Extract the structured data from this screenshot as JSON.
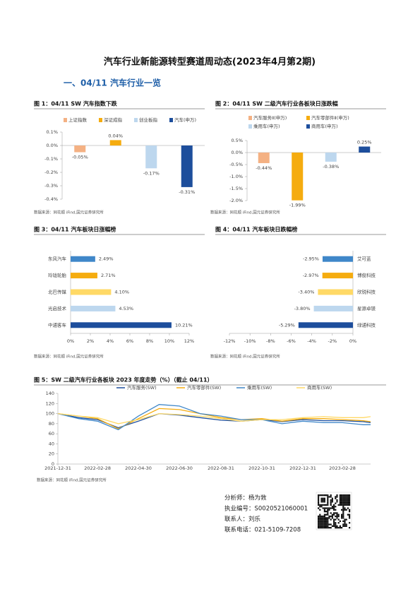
{
  "header": {
    "title": "汽车行业新能源转型赛道周动态(2023年4月第2期)",
    "section": "一、04/11 汽车行业一览"
  },
  "chart_data": [
    {
      "type": "bar",
      "title": "图 1：04/11 SW 汽车指数下跌",
      "source": "数据来源：同花顺 iFind,国元证券研究所",
      "series": [
        {
          "name": "上证指数",
          "color": "#f4b183",
          "values": [
            -0.05
          ],
          "value_labels": [
            "-0.05%"
          ]
        },
        {
          "name": "深证成指",
          "color": "#f5ac0f",
          "values": [
            0.04
          ],
          "value_labels": [
            "0.04%"
          ]
        },
        {
          "name": "创业板指",
          "color": "#bdd7ee",
          "values": [
            -0.17
          ],
          "value_labels": [
            "-0.17%"
          ]
        },
        {
          "name": "汽车(申万)",
          "color": "#1d4e9c",
          "values": [
            -0.31
          ],
          "value_labels": [
            "-0.31%"
          ]
        }
      ],
      "ylim": [
        -0.4,
        0.1
      ],
      "yticks": [
        {
          "value": 0.1,
          "label": "0.1%"
        },
        {
          "value": 0,
          "label": "0.0%"
        },
        {
          "value": -0.1,
          "label": "-0.1%"
        },
        {
          "value": -0.2,
          "label": "-0.2%"
        },
        {
          "value": -0.3,
          "label": "-0.3%"
        },
        {
          "value": -0.4,
          "label": "-0.4%"
        }
      ],
      "grid": false
    },
    {
      "type": "bar",
      "title": "图 2：04/11 SW 二级汽车行业各板块日涨跌幅",
      "source": "数据来源：同花顺 iFind,国元证券研究所",
      "series": [
        {
          "name": "汽车服务Ⅱ(申万)",
          "color": "#f4b183",
          "values": [
            -0.44
          ],
          "value_labels": [
            "-0.44%"
          ]
        },
        {
          "name": "汽车零部件Ⅱ(申万)",
          "color": "#f5ac0f",
          "values": [
            -1.99
          ],
          "value_labels": [
            "-1.99%"
          ]
        },
        {
          "name": "乘用车(申万)",
          "color": "#bdd7ee",
          "values": [
            -0.38
          ],
          "value_labels": [
            "-0.38%"
          ]
        },
        {
          "name": "商用车(申万)",
          "color": "#1d4e9c",
          "values": [
            0.25
          ],
          "value_labels": [
            "0.25%"
          ]
        }
      ],
      "ylim": [
        -2.0,
        0.5
      ],
      "yticks": [
        {
          "value": 0.5,
          "label": "0.5%"
        },
        {
          "value": 0,
          "label": "0.0%"
        },
        {
          "value": -0.5,
          "label": "-0.5%"
        },
        {
          "value": -1.0,
          "label": "-1.0%"
        },
        {
          "value": -1.5,
          "label": "-1.5%"
        },
        {
          "value": -2.0,
          "label": "-2.0%"
        }
      ],
      "grid": false
    },
    {
      "type": "barh",
      "title": "图 3：04/11 汽车板块日涨幅榜",
      "source": "数据来源：同花顺 iFind,国元证券研究所",
      "categories": [
        "东风汽车",
        "玲珑轮胎",
        "北巴传媒",
        "光启技术",
        "中通客车"
      ],
      "values": [
        2.49,
        2.71,
        4.1,
        4.53,
        10.21
      ],
      "value_labels": [
        "2.49%",
        "2.71%",
        "4.10%",
        "4.53%",
        "10.21%"
      ],
      "colors": [
        "#3f87c9",
        "#f5ac0f",
        "#ffd966",
        "#bdd7ee",
        "#1d4e9c"
      ],
      "xlim": [
        0,
        12
      ],
      "xticks": [
        {
          "value": 0,
          "label": "0%"
        },
        {
          "value": 2,
          "label": "2%"
        },
        {
          "value": 4,
          "label": "4%"
        },
        {
          "value": 6,
          "label": "6%"
        },
        {
          "value": 8,
          "label": "8%"
        },
        {
          "value": 10,
          "label": "10%"
        },
        {
          "value": 12,
          "label": "12%"
        }
      ]
    },
    {
      "type": "barh",
      "title": "图 4：04/11 汽车板块日跌幅榜",
      "source": "数据来源：同花顺 iFind,国元证券研究所",
      "categories": [
        "艾可蓝",
        "博俊科技",
        "欣锐科技",
        "星源卓镁",
        "绿通科技"
      ],
      "values": [
        -2.95,
        -2.97,
        -3.4,
        -3.8,
        -5.29
      ],
      "value_labels": [
        "-2.95%",
        "-2.97%",
        "-3.40%",
        "-3.80%",
        "-5.29%"
      ],
      "colors": [
        "#3f87c9",
        "#f5ac0f",
        "#ffd966",
        "#bdd7ee",
        "#1d4e9c"
      ],
      "xlim": [
        -12,
        0
      ],
      "xticks": [
        {
          "value": -12,
          "label": "-12%"
        },
        {
          "value": -10,
          "label": "-10%"
        },
        {
          "value": -8,
          "label": "-8%"
        },
        {
          "value": -6,
          "label": "-6%"
        },
        {
          "value": -4,
          "label": "-4%"
        },
        {
          "value": -2,
          "label": "-2%"
        },
        {
          "value": 0,
          "label": "0%"
        }
      ]
    },
    {
      "type": "line",
      "title": "图 5：SW 二级汽车行业各板块 2023 年度走势（%）（截止 04/11）",
      "source": "数据来源：同花顺 iFind,国元证券研究所",
      "x": [
        "2021-12-31",
        "2022-01-31",
        "2022-02-28",
        "2022-03-31",
        "2022-04-30",
        "2022-05-31",
        "2022-06-30",
        "2022-07-31",
        "2022-08-31",
        "2022-09-30",
        "2022-10-31",
        "2022-11-30",
        "2022-12-31",
        "2023-01-31",
        "2023-02-28",
        "2023-03-31",
        "2023-04-11"
      ],
      "series": [
        {
          "name": "汽车服务(SW)",
          "color": "#1d4e9c",
          "values": [
            100,
            92,
            88,
            72,
            85,
            100,
            97,
            92,
            87,
            85,
            88,
            84,
            88,
            86,
            86,
            84,
            82
          ]
        },
        {
          "name": "汽车零部件(SW)",
          "color": "#f5ac0f",
          "values": [
            100,
            95,
            90,
            70,
            90,
            110,
            108,
            100,
            92,
            88,
            90,
            85,
            90,
            90,
            88,
            86,
            84
          ]
        },
        {
          "name": "乘用车(SW)",
          "color": "#3f87c9",
          "values": [
            100,
            90,
            85,
            68,
            95,
            118,
            115,
            100,
            95,
            88,
            88,
            80,
            85,
            82,
            82,
            78,
            78
          ]
        },
        {
          "name": "商用车(SW)",
          "color": "#ffd966",
          "values": [
            100,
            95,
            92,
            80,
            88,
            100,
            98,
            95,
            90,
            85,
            88,
            88,
            92,
            94,
            92,
            92,
            94
          ]
        }
      ],
      "xlim": [
        "2021-12-31",
        "2023-04-11"
      ],
      "xticks": [
        "2021-12-31",
        "2022-02-28",
        "2022-04-30",
        "2022-06-30",
        "2022-08-31",
        "2022-10-31",
        "2022-12-31",
        "2023-02-28"
      ],
      "ylim": [
        0,
        140
      ],
      "yticks": [
        0,
        20,
        40,
        60,
        80,
        100,
        120,
        140
      ],
      "grid": false
    }
  ],
  "contact": {
    "analyst": "分析师：杨为敩",
    "license": "执业编号：S0020521060001",
    "contact_person": "联系人：刘乐",
    "phone": "联系电话：021-5109-7208"
  }
}
